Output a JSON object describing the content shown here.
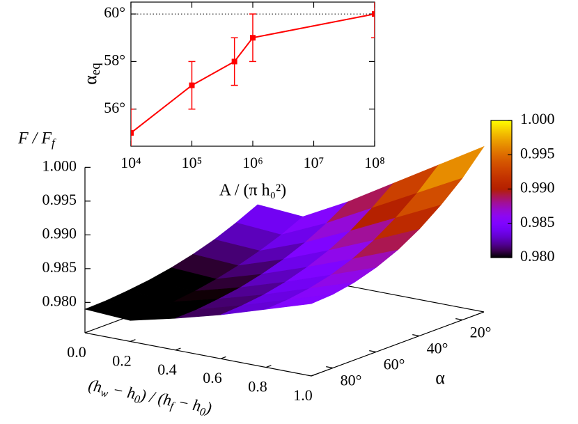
{
  "chart_data": [
    {
      "type": "line",
      "x": [
        10000,
        100000,
        500000,
        1000000,
        100000000
      ],
      "series": [
        {
          "color": "#ff0000",
          "values": [
            55,
            57,
            58,
            59,
            60
          ],
          "errors": [
            1,
            1,
            1,
            1,
            1
          ]
        }
      ],
      "xscale": "log",
      "xlim": [
        10000,
        100000000
      ],
      "xticks": [
        {
          "value": 10000,
          "label": "10⁴"
        },
        {
          "value": 100000,
          "label": "10⁵"
        },
        {
          "value": 1000000,
          "label": "10⁶"
        },
        {
          "value": 10000000,
          "label": "10⁷"
        },
        {
          "value": 100000000,
          "label": "10⁸"
        }
      ],
      "ylim": [
        54.44,
        60.5
      ],
      "yticks": [
        {
          "value": 56,
          "label": "56°"
        },
        {
          "value": 58,
          "label": "58°"
        },
        {
          "value": 60,
          "label": "60°"
        }
      ],
      "reference_line": 60,
      "y_label": {
        "main": "α",
        "sub": "eq"
      },
      "x_label": "A / (π h₀²)"
    },
    {
      "type": "surface",
      "h": [
        0,
        0.2,
        0.4,
        0.6,
        0.8,
        1.0
      ],
      "alpha": [
        10,
        20,
        30,
        40,
        50,
        60,
        70,
        80,
        90
      ],
      "z": [
        [
          0.985,
          0.9845,
          0.988,
          0.992,
          0.996,
          1.0
        ],
        [
          0.9835,
          0.983,
          0.986,
          0.9895,
          0.993,
          0.9965
        ],
        [
          0.9822,
          0.9818,
          0.9843,
          0.9873,
          0.9905,
          0.9937
        ],
        [
          0.9812,
          0.9808,
          0.983,
          0.9856,
          0.9884,
          0.9913
        ],
        [
          0.9804,
          0.98,
          0.982,
          0.9843,
          0.9868,
          0.9894
        ],
        [
          0.9798,
          0.9794,
          0.9812,
          0.9833,
          0.9856,
          0.988
        ],
        [
          0.9794,
          0.979,
          0.9807,
          0.9826,
          0.9848,
          0.987
        ],
        [
          0.9791,
          0.9787,
          0.9803,
          0.9822,
          0.9843,
          0.9864
        ],
        [
          0.979,
          0.9786,
          0.9802,
          0.982,
          0.9841,
          0.9862
        ]
      ],
      "hlim": [
        0,
        1
      ],
      "hticks": [
        {
          "value": 0,
          "label": "0.0"
        },
        {
          "value": 0.2,
          "label": "0.2"
        },
        {
          "value": 0.4,
          "label": "0.4"
        },
        {
          "value": 0.6,
          "label": "0.6"
        },
        {
          "value": 0.8,
          "label": "0.8"
        },
        {
          "value": 1,
          "label": "1.0"
        }
      ],
      "alim": [
        10,
        90
      ],
      "aticks": [
        {
          "value": 20,
          "label": "20°"
        },
        {
          "value": 40,
          "label": "40°"
        },
        {
          "value": 60,
          "label": "60°"
        },
        {
          "value": 80,
          "label": "80°"
        }
      ],
      "zlim": [
        0.9755,
        1.0
      ],
      "zticks": [
        {
          "value": 0.98,
          "label": "0.980"
        },
        {
          "value": 0.985,
          "label": "0.985"
        },
        {
          "value": 0.99,
          "label": "0.990"
        },
        {
          "value": 0.995,
          "label": "0.995"
        },
        {
          "value": 1.0,
          "label": "1.000"
        }
      ],
      "cblim": [
        0.98,
        1.0
      ],
      "cbticks": [
        {
          "value": 0.98,
          "label": "0.980"
        },
        {
          "value": 0.985,
          "label": "0.985"
        },
        {
          "value": 0.99,
          "label": "0.990"
        },
        {
          "value": 0.995,
          "label": "0.995"
        },
        {
          "value": 1.0,
          "label": "1.000"
        }
      ],
      "z_label": {
        "main": "F / F",
        "sub": "f"
      },
      "h_label": [
        "(h",
        "w",
        " − h",
        "0",
        ") / (h",
        "f",
        " − h",
        "0",
        ")"
      ],
      "a_label": "α"
    }
  ]
}
